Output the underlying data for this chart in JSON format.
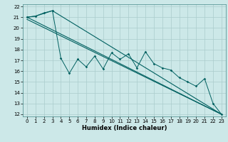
{
  "xlabel": "Humidex (Indice chaleur)",
  "background_color": "#cce8e8",
  "grid_color": "#aacccc",
  "line_color": "#006060",
  "xlim": [
    -0.5,
    23.5
  ],
  "ylim": [
    11.8,
    22.2
  ],
  "xticks": [
    0,
    1,
    2,
    3,
    4,
    5,
    6,
    7,
    8,
    9,
    10,
    11,
    12,
    13,
    14,
    15,
    16,
    17,
    18,
    19,
    20,
    21,
    22,
    23
  ],
  "yticks": [
    12,
    13,
    14,
    15,
    16,
    17,
    18,
    19,
    20,
    21,
    22
  ],
  "line1_x": [
    0,
    1,
    3,
    23
  ],
  "line1_y": [
    21.0,
    21.1,
    21.6,
    12.0
  ],
  "line2_x": [
    0,
    23
  ],
  "line2_y": [
    20.8,
    12.0
  ],
  "line3_x": [
    0,
    23
  ],
  "line3_y": [
    21.0,
    12.0
  ],
  "zigzag_x": [
    0,
    1,
    2,
    3,
    4,
    5,
    6,
    7,
    8,
    9,
    10,
    11,
    12,
    13,
    14,
    15,
    16,
    17,
    18,
    19,
    20,
    21,
    22,
    23
  ],
  "zigzag_y": [
    21.0,
    21.1,
    21.4,
    21.6,
    17.2,
    15.8,
    17.1,
    16.4,
    17.4,
    16.2,
    17.7,
    17.1,
    17.6,
    16.3,
    17.8,
    16.7,
    16.3,
    16.1,
    15.4,
    15.0,
    14.6,
    15.3,
    13.0,
    12.0
  ]
}
